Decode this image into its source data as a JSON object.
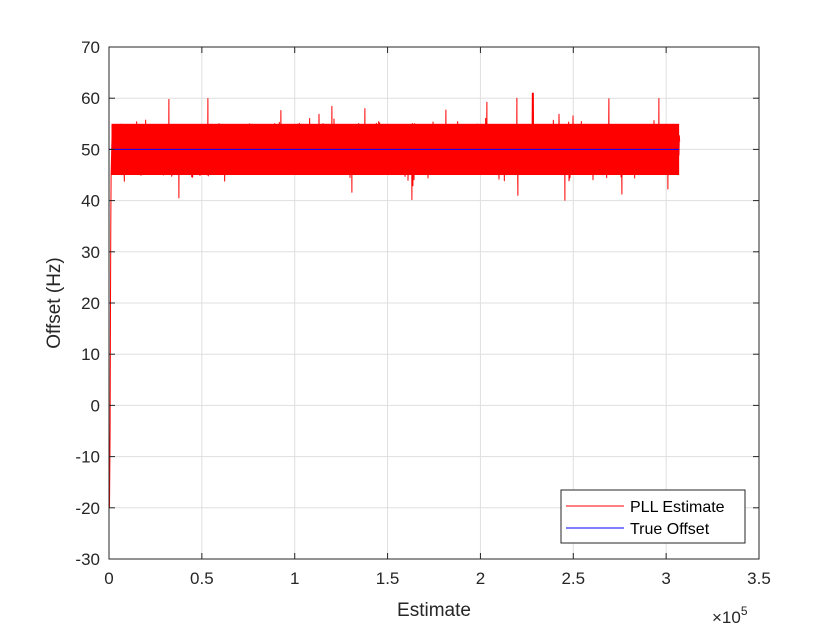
{
  "chart_data": {
    "type": "line",
    "title": "",
    "xlabel": "Estimate",
    "ylabel": "Offset (Hz)",
    "xlim": [
      0,
      3.5
    ],
    "ylim": [
      -30,
      70
    ],
    "x_exponent_label": "×10",
    "x_exponent_power": "5",
    "x_ticks": [
      0,
      0.5,
      1,
      1.5,
      2,
      2.5,
      3,
      3.5
    ],
    "x_tick_labels": [
      "0",
      "0.5",
      "1",
      "1.5",
      "2",
      "2.5",
      "3",
      "3.5"
    ],
    "y_ticks": [
      -30,
      -20,
      -10,
      0,
      10,
      20,
      30,
      40,
      50,
      60,
      70
    ],
    "y_tick_labels": [
      "-30",
      "-20",
      "-10",
      "0",
      "10",
      "20",
      "30",
      "40",
      "50",
      "60",
      "70"
    ],
    "grid": true,
    "legend_position": "bottom-right",
    "series": [
      {
        "name": "PLL Estimate",
        "color": "#ff0000",
        "description_shape": "noisy band around 50 Hz",
        "x_range": [
          0,
          3.07
        ],
        "center": 50,
        "band_typical": [
          43,
          57
        ],
        "band_extreme": [
          40,
          61
        ],
        "initial_transient_min": -20,
        "spike_at_x": 2.28,
        "spike_value": 61
      },
      {
        "name": "True Offset",
        "color": "#0000ff",
        "x": [
          0,
          3.07
        ],
        "values": [
          50,
          50
        ]
      }
    ]
  }
}
